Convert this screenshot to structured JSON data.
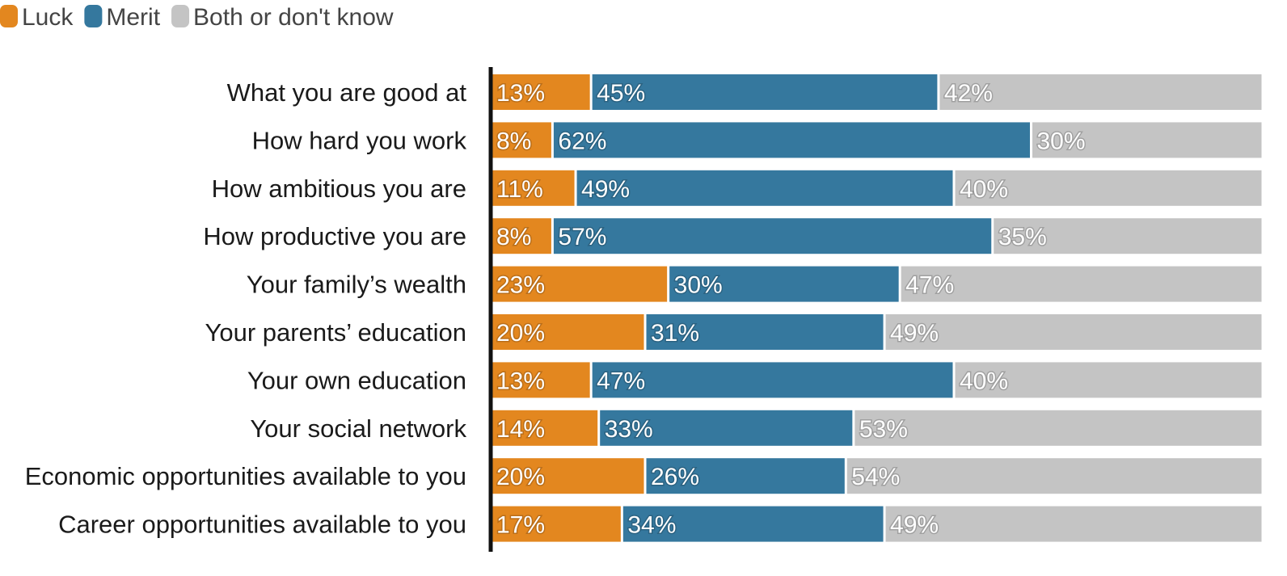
{
  "chart_data": {
    "type": "bar",
    "orientation": "horizontal",
    "stacked": true,
    "percent_suffix": "%",
    "categories": [
      "What you are good at",
      "How hard you work",
      "How ambitious you are",
      "How productive you are",
      "Your family’s wealth",
      "Your parents’ education",
      "Your own education",
      "Your social network",
      "Economic opportunities available to you",
      "Career opportunities available to you"
    ],
    "series": [
      {
        "name": "Luck",
        "color": "#e3871f",
        "values": [
          13,
          8,
          11,
          8,
          23,
          20,
          13,
          14,
          20,
          17
        ]
      },
      {
        "name": "Merit",
        "color": "#35789e",
        "values": [
          45,
          62,
          49,
          57,
          30,
          31,
          47,
          33,
          26,
          34
        ]
      },
      {
        "name": "Both or don't know",
        "color": "#c4c4c4",
        "values": [
          42,
          30,
          40,
          35,
          47,
          49,
          40,
          53,
          54,
          49
        ]
      }
    ],
    "xlim": [
      0,
      100
    ],
    "legend_position": "top-left",
    "grid": false
  }
}
